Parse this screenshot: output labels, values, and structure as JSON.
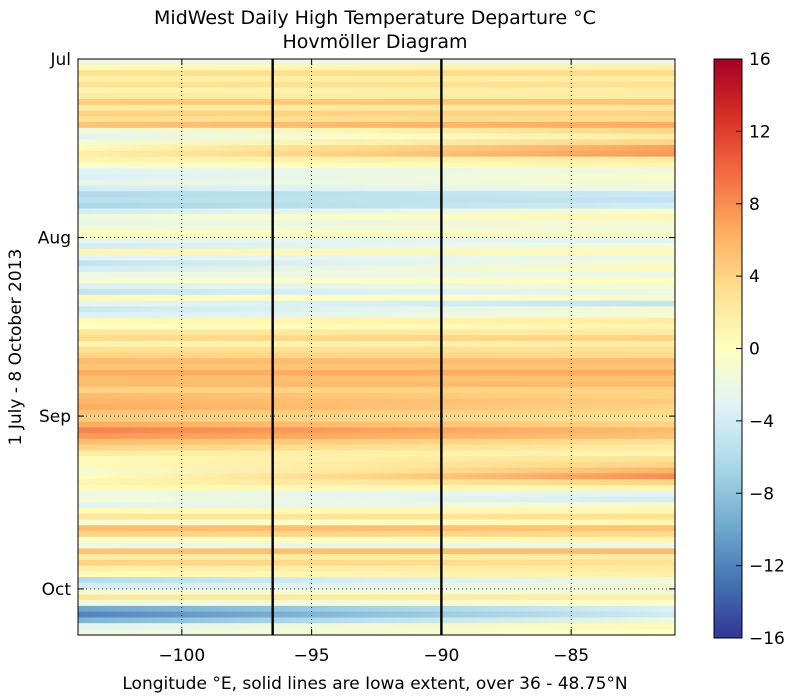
{
  "chart_data": {
    "type": "heatmap",
    "title": "MidWest Daily High Temperature Departure °C",
    "subtitle": "Hovmöller Diagram",
    "xlabel": "Longitude °E, solid lines are Iowa extent, over 36 - 48.75°N",
    "ylabel": "1 July - 8 October 2013",
    "xlim": [
      -104,
      -81
    ],
    "x_ticks": [
      -100,
      -95,
      -90,
      -85
    ],
    "x_tick_labels": [
      "−100",
      "−95",
      "−90",
      "−85"
    ],
    "y_ticks": [
      {
        "label": "Jul",
        "day": 0
      },
      {
        "label": "Aug",
        "day": 31
      },
      {
        "label": "Sep",
        "day": 62
      },
      {
        "label": "Oct",
        "day": 92
      }
    ],
    "days": 100,
    "reference_lines_x": [
      -96.5,
      -90
    ],
    "grid": true,
    "colorbar": {
      "min": -16,
      "max": 16,
      "ticks": [
        16,
        12,
        8,
        4,
        0,
        -4,
        -8,
        -12,
        -16
      ],
      "tick_labels": [
        "16",
        "12",
        "8",
        "4",
        "0",
        "−4",
        "−8",
        "−12",
        "−16"
      ],
      "colormap": [
        "#313695",
        "#4575b4",
        "#74add1",
        "#abd9e9",
        "#e0f3f8",
        "#ffffbf",
        "#fee090",
        "#fdae61",
        "#f46d43",
        "#d73027",
        "#a50026"
      ]
    },
    "daily_departure_west_east": [
      [
        -2,
        -2
      ],
      [
        0.5,
        1.5
      ],
      [
        3,
        3.5
      ],
      [
        1.5,
        2
      ],
      [
        3,
        3
      ],
      [
        1,
        2
      ],
      [
        2,
        2
      ],
      [
        4.5,
        5
      ],
      [
        2,
        2.5
      ],
      [
        4,
        4
      ],
      [
        3,
        3.5
      ],
      [
        5,
        6.5
      ],
      [
        -1.5,
        4
      ],
      [
        -3,
        2
      ],
      [
        -1,
        4
      ],
      [
        0.5,
        7
      ],
      [
        1.5,
        7.5
      ],
      [
        1,
        2
      ],
      [
        -0.5,
        1
      ],
      [
        -3,
        -1.5
      ],
      [
        -3.5,
        -0.5
      ],
      [
        -2.5,
        -1
      ],
      [
        -4,
        -2
      ],
      [
        -6,
        -4.5
      ],
      [
        -5.5,
        -5
      ],
      [
        -6.5,
        -4
      ],
      [
        -4,
        -1
      ],
      [
        -1.5,
        1
      ],
      [
        -2.5,
        -1
      ],
      [
        -1,
        -1.5
      ],
      [
        0,
        -0.5
      ],
      [
        -2.5,
        -3
      ],
      [
        -4,
        -1
      ],
      [
        1,
        0.5
      ],
      [
        -3,
        -2
      ],
      [
        -5,
        -1
      ],
      [
        -4,
        0.5
      ],
      [
        -2,
        -2
      ],
      [
        -1,
        0
      ],
      [
        -3.5,
        -1
      ],
      [
        -5,
        -2
      ],
      [
        0.5,
        -1
      ],
      [
        -2.5,
        -5
      ],
      [
        -4.5,
        -1
      ],
      [
        -3.5,
        -1
      ],
      [
        0.5,
        2
      ],
      [
        0,
        1
      ],
      [
        2.5,
        2
      ],
      [
        3.5,
        4
      ],
      [
        1,
        2
      ],
      [
        3,
        3
      ],
      [
        4,
        3.5
      ],
      [
        5.5,
        5.5
      ],
      [
        5,
        5
      ],
      [
        6.5,
        6.5
      ],
      [
        5.5,
        5
      ],
      [
        5.5,
        5.5
      ],
      [
        4,
        4
      ],
      [
        5.5,
        4
      ],
      [
        6,
        4.5
      ],
      [
        6.5,
        4
      ],
      [
        5,
        3.5
      ],
      [
        4.5,
        3
      ],
      [
        6.5,
        4
      ],
      [
        8.5,
        5.5
      ],
      [
        7.5,
        5
      ],
      [
        5.5,
        3
      ],
      [
        4,
        2
      ],
      [
        2,
        1
      ],
      [
        0.5,
        3
      ],
      [
        0.5,
        4
      ],
      [
        -1,
        6
      ],
      [
        0,
        8
      ],
      [
        1,
        4
      ],
      [
        0.5,
        1
      ],
      [
        -2,
        -3
      ],
      [
        -1,
        -4
      ],
      [
        -3,
        -1
      ],
      [
        0.5,
        1
      ],
      [
        2.5,
        3
      ],
      [
        -1,
        1
      ],
      [
        5.5,
        5
      ],
      [
        4,
        3.5
      ],
      [
        -0.5,
        1
      ],
      [
        -2,
        -2
      ],
      [
        5,
        5.5
      ],
      [
        2,
        2
      ],
      [
        4,
        3
      ],
      [
        1.5,
        2
      ],
      [
        0.5,
        1.5
      ],
      [
        -6,
        -1.5
      ],
      [
        -4,
        -1
      ],
      [
        -1,
        -1.5
      ],
      [
        2.5,
        1.5
      ],
      [
        -2,
        -0.5
      ],
      [
        -10,
        -3.5
      ],
      [
        -12,
        -4
      ],
      [
        -9,
        -1.5
      ],
      [
        -3,
        0.5
      ],
      [
        -2,
        0
      ]
    ]
  }
}
